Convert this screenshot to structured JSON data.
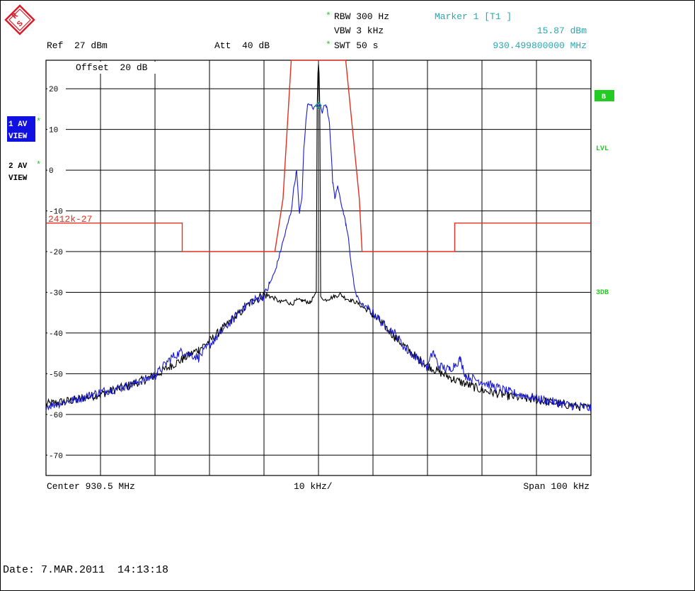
{
  "header": {
    "rbw_star": "*",
    "rbw": "RBW 300 Hz",
    "vbw": "VBW 3 kHz",
    "swt_star": "*",
    "swt": "SWT 50 s",
    "ref": "Ref  27 dBm",
    "att": "Att  40 dB",
    "marker_title": "Marker 1 [T1 ]",
    "marker_level": "15.87 dBm",
    "marker_freq": "930.499800000 MHz",
    "offset": "Offset  20 dB"
  },
  "side_labels": {
    "trace1_line1": "1 AV",
    "trace1_line2": "VIEW",
    "trace1_star": "*",
    "trace2_line1": "2 AV",
    "trace2_line2": "VIEW",
    "trace2_star": "*",
    "badge_b": "B",
    "lvl": "LVL",
    "db3": "3DB"
  },
  "limit_line_label": "2412k-27",
  "footer": {
    "center": "Center 930.5 MHz",
    "div": "10 kHz/",
    "span": "Span 100 kHz",
    "date": "Date: 7.MAR.2011  14:13:18"
  },
  "colors": {
    "blue_trace": "#1a1ad0",
    "black_trace": "#000000",
    "limit_line": "#e03020",
    "teal_text": "#2aa7b0",
    "green": "#22cc22",
    "selected_bg": "#1010e0",
    "logo_red": "#d81e2c"
  },
  "chart_data": {
    "type": "line",
    "x_unit": "kHz offset from center (930.5 MHz)",
    "xlim": [
      -50,
      50
    ],
    "ylim": [
      -75,
      27
    ],
    "y_ticks": [
      20,
      10,
      0,
      -10,
      -20,
      -30,
      -40,
      -50,
      -60,
      -70
    ],
    "y_tick_labels": [
      "20",
      "10",
      "0",
      "-10",
      "-20",
      "-30",
      "-40",
      "-50",
      "-60",
      "-70"
    ],
    "grid": true,
    "marker": {
      "x": -0.0002,
      "y": 15.87
    },
    "series": [
      {
        "points": [
          [
            -50,
            -57.5
          ],
          [
            -45,
            -56.5
          ],
          [
            -40,
            -55
          ],
          [
            -35,
            -53
          ],
          [
            -30,
            -50.5
          ],
          [
            -27,
            -48
          ],
          [
            -25,
            -46.5
          ],
          [
            -22,
            -44
          ],
          [
            -20,
            -42
          ],
          [
            -18,
            -39.5
          ],
          [
            -16,
            -37
          ],
          [
            -14,
            -34.5
          ],
          [
            -12,
            -32
          ],
          [
            -10,
            -30.5
          ],
          [
            -9,
            -31
          ],
          [
            -8,
            -31.5
          ],
          [
            -7,
            -32.5
          ],
          [
            -6,
            -32
          ],
          [
            -5,
            -33
          ],
          [
            -4,
            -32
          ],
          [
            -3,
            -32
          ],
          [
            -1.5,
            -32.5
          ],
          [
            -0.4,
            -30
          ],
          [
            -0.25,
            15
          ],
          [
            -0.1,
            24
          ],
          [
            0,
            26
          ],
          [
            0.1,
            24
          ],
          [
            0.25,
            15
          ],
          [
            0.4,
            -31
          ],
          [
            1,
            -32
          ],
          [
            2,
            -31.5
          ],
          [
            3,
            -31
          ],
          [
            4,
            -30.5
          ],
          [
            5,
            -31.5
          ],
          [
            6,
            -32
          ],
          [
            7,
            -32.5
          ],
          [
            8,
            -33.5
          ],
          [
            10,
            -35.5
          ],
          [
            12,
            -38
          ],
          [
            14,
            -41
          ],
          [
            16,
            -43.5
          ],
          [
            18,
            -46
          ],
          [
            20,
            -48
          ],
          [
            22,
            -49.5
          ],
          [
            25,
            -51.5
          ],
          [
            28,
            -53
          ],
          [
            30,
            -54
          ],
          [
            35,
            -55.5
          ],
          [
            40,
            -56.5
          ],
          [
            45,
            -57.5
          ],
          [
            50,
            -58.5
          ]
        ]
      },
      {
        "points": [
          [
            -50,
            -58
          ],
          [
            -45,
            -56.5
          ],
          [
            -40,
            -54.5
          ],
          [
            -35,
            -53
          ],
          [
            -30,
            -50.5
          ],
          [
            -27,
            -46
          ],
          [
            -25,
            -44.5
          ],
          [
            -22,
            -46
          ],
          [
            -20,
            -43
          ],
          [
            -18,
            -40
          ],
          [
            -16,
            -37
          ],
          [
            -14,
            -34
          ],
          [
            -12,
            -32
          ],
          [
            -10,
            -31
          ],
          [
            -9,
            -28
          ],
          [
            -8,
            -25
          ],
          [
            -7,
            -20
          ],
          [
            -6,
            -15
          ],
          [
            -5,
            -10
          ],
          [
            -4.5,
            -4
          ],
          [
            -4,
            0
          ],
          [
            -3.5,
            -11
          ],
          [
            -3,
            -6
          ],
          [
            -2.7,
            5
          ],
          [
            -2.3,
            12
          ],
          [
            -2,
            16
          ],
          [
            -1.5,
            16.5
          ],
          [
            -1,
            15
          ],
          [
            -0.5,
            16
          ],
          [
            -0.2,
            15.8
          ],
          [
            0,
            15.87
          ],
          [
            0.3,
            16
          ],
          [
            0.7,
            14
          ],
          [
            1,
            16
          ],
          [
            1.5,
            15.5
          ],
          [
            2,
            12
          ],
          [
            2.3,
            5
          ],
          [
            2.6,
            -3
          ],
          [
            3,
            -7
          ],
          [
            3.5,
            -4
          ],
          [
            4,
            -7
          ],
          [
            4.5,
            -10
          ],
          [
            5,
            -13
          ],
          [
            5.5,
            -17
          ],
          [
            6,
            -23
          ],
          [
            6.5,
            -28
          ],
          [
            7,
            -31
          ],
          [
            8,
            -33
          ],
          [
            10,
            -35
          ],
          [
            12,
            -38
          ],
          [
            14,
            -40
          ],
          [
            16,
            -44
          ],
          [
            18,
            -46
          ],
          [
            20,
            -48.5
          ],
          [
            21,
            -44.5
          ],
          [
            22,
            -48
          ],
          [
            24,
            -49
          ],
          [
            26,
            -46.5
          ],
          [
            27,
            -50.5
          ],
          [
            30,
            -52
          ],
          [
            35,
            -54.5
          ],
          [
            40,
            -56
          ],
          [
            45,
            -57.5
          ],
          [
            50,
            -58.5
          ]
        ]
      }
    ],
    "limit_line": {
      "label": "2412k-27",
      "points": [
        [
          -50,
          -13
        ],
        [
          -25,
          -13
        ],
        [
          -25,
          -20
        ],
        [
          -8,
          -20
        ],
        [
          -6.5,
          -7
        ],
        [
          -5,
          27
        ],
        [
          5,
          27
        ],
        [
          7.5,
          -7
        ],
        [
          8,
          -20
        ],
        [
          25,
          -20
        ],
        [
          25,
          -13
        ],
        [
          50,
          -13
        ]
      ]
    }
  }
}
